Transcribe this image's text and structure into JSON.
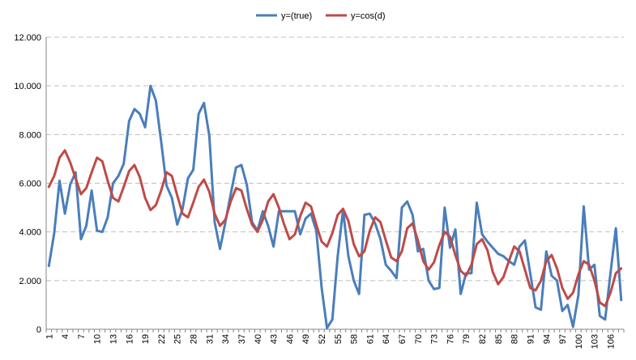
{
  "chart_data": {
    "type": "line",
    "title": "",
    "xlabel": "",
    "ylabel": "",
    "ylim": [
      0,
      12000
    ],
    "y_ticks": [
      "0",
      "2.000",
      "4.000",
      "6.000",
      "8.000",
      "10.000",
      "12.000"
    ],
    "y_tick_values": [
      0,
      2000,
      4000,
      6000,
      8000,
      10000,
      12000
    ],
    "x": [
      1,
      2,
      3,
      4,
      5,
      6,
      7,
      8,
      9,
      10,
      11,
      12,
      13,
      14,
      15,
      16,
      17,
      18,
      19,
      20,
      21,
      22,
      23,
      24,
      25,
      26,
      27,
      28,
      29,
      30,
      31,
      32,
      33,
      34,
      35,
      36,
      37,
      38,
      39,
      40,
      41,
      42,
      43,
      44,
      45,
      46,
      47,
      48,
      49,
      50,
      51,
      52,
      53,
      54,
      55,
      56,
      57,
      58,
      59,
      60,
      61,
      62,
      63,
      64,
      65,
      66,
      67,
      68,
      69,
      70,
      71,
      72,
      73,
      74,
      75,
      76,
      77,
      78,
      79,
      80,
      81,
      82,
      83,
      84,
      85,
      86,
      87,
      88,
      89,
      90,
      91,
      92,
      93,
      94,
      95,
      96,
      97,
      98,
      99,
      100,
      101,
      102,
      103,
      104,
      105,
      106,
      107,
      108
    ],
    "x_tick_labels": [
      "1",
      "4",
      "7",
      "10",
      "13",
      "16",
      "19",
      "22",
      "25",
      "28",
      "31",
      "34",
      "37",
      "40",
      "43",
      "46",
      "49",
      "52",
      "55",
      "58",
      "61",
      "64",
      "67",
      "70",
      "73",
      "76",
      "79",
      "82",
      "85",
      "88",
      "91",
      "94",
      "97",
      "100",
      "103",
      "106"
    ],
    "grid": true,
    "legend_position": "top-center",
    "series": [
      {
        "name": "y=(true)",
        "color": "#4a7ebb",
        "values": [
          2600,
          3950,
          6100,
          4750,
          5950,
          6450,
          3700,
          4250,
          5700,
          4050,
          4000,
          4600,
          6000,
          6300,
          6800,
          8550,
          9050,
          8850,
          8300,
          10000,
          9400,
          7700,
          5900,
          5400,
          4300,
          4950,
          6200,
          6550,
          8850,
          9300,
          7950,
          4400,
          3300,
          4400,
          5550,
          6650,
          6750,
          5950,
          4400,
          4050,
          4850,
          4250,
          3400,
          4850,
          4850,
          4850,
          4850,
          3900,
          4550,
          4750,
          4050,
          1700,
          50,
          400,
          3000,
          4900,
          3000,
          2000,
          1450,
          4700,
          4750,
          4350,
          3700,
          2650,
          2400,
          2100,
          5000,
          5250,
          4700,
          3200,
          3300,
          2000,
          1650,
          1700,
          5000,
          3350,
          4100,
          1450,
          2300,
          2300,
          5200,
          3900,
          3600,
          3350,
          3100,
          3000,
          2800,
          2650,
          3400,
          3650,
          2300,
          900,
          800,
          3200,
          2200,
          2000,
          750,
          1000,
          100,
          1400,
          5050,
          2450,
          2650,
          550,
          400,
          2300,
          4150,
          1200
        ]
      },
      {
        "name": "y=cos(d)",
        "color": "#be4b48",
        "values": [
          5850,
          6300,
          7050,
          7350,
          6850,
          6200,
          5550,
          5800,
          6450,
          7050,
          6900,
          6100,
          5400,
          5250,
          5850,
          6500,
          6750,
          6250,
          5400,
          4900,
          5100,
          5700,
          6450,
          6300,
          5500,
          4750,
          4600,
          5200,
          5850,
          6150,
          5650,
          4750,
          4250,
          4500,
          5250,
          5800,
          5700,
          4950,
          4300,
          4000,
          4500,
          5250,
          5550,
          5000,
          4300,
          3700,
          3900,
          4650,
          5200,
          5050,
          4300,
          3600,
          3400,
          3950,
          4700,
          4950,
          4450,
          3500,
          3000,
          3200,
          4050,
          4600,
          4400,
          3650,
          2950,
          2800,
          3200,
          4150,
          4350,
          3650,
          2800,
          2450,
          2750,
          3450,
          4000,
          3800,
          3050,
          2400,
          2200,
          2650,
          3500,
          3700,
          3250,
          2350,
          1850,
          2150,
          2800,
          3400,
          3200,
          2450,
          1700,
          1600,
          2000,
          2800,
          3050,
          2500,
          1700,
          1250,
          1500,
          2250,
          2800,
          2650,
          2000,
          1100,
          950,
          1500,
          2300,
          2500
        ]
      }
    ]
  }
}
